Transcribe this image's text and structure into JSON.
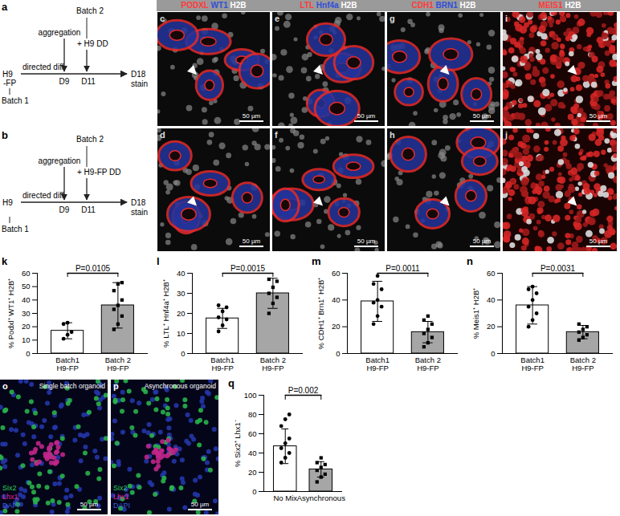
{
  "diagrams": [
    {
      "panel": "a",
      "cell_line": "H9",
      "cell_line_suffix": "-FP",
      "batch1": "Batch 1",
      "process": "directed diff",
      "aggregation": "aggregation",
      "aggregation_day": "D9",
      "batch2": "Batch 2",
      "batch2_addition": "+ H9 DD",
      "batch2_day": "D11",
      "end_day": "D18",
      "end_label": "stain"
    },
    {
      "panel": "b",
      "cell_line": "H9",
      "batch1": "Batch 1",
      "process": "directed diff",
      "aggregation": "aggregation",
      "aggregation_day": "D9",
      "batch2": "Batch 2",
      "batch2_addition": "+ H9-FP DD",
      "batch2_day": "D11",
      "end_day": "D18",
      "end_label": "stain"
    }
  ],
  "image_panels": {
    "headers": [
      [
        {
          "text": "PODXL",
          "color": "#ff3b3b"
        },
        {
          "text": "WT1",
          "color": "#2f4fd8"
        },
        {
          "text": "H2B",
          "color": "#ffffff"
        }
      ],
      [
        {
          "text": "LTL",
          "color": "#ff3b3b"
        },
        {
          "text": "Hnf4a",
          "color": "#2f4fd8"
        },
        {
          "text": "H2B",
          "color": "#ffffff"
        }
      ],
      [
        {
          "text": "CDH1",
          "color": "#ff3b3b"
        },
        {
          "text": "BRN1",
          "color": "#2f4fd8"
        },
        {
          "text": "H2B",
          "color": "#ffffff"
        }
      ],
      [
        {
          "text": "MEIS1",
          "color": "#ff3b3b"
        },
        {
          "text": "H2B",
          "color": "#ffffff"
        }
      ]
    ],
    "rows": [
      [
        {
          "label": "c",
          "scale_bar": "50 µm"
        },
        {
          "label": "e",
          "scale_bar": "50 µm"
        },
        {
          "label": "g",
          "scale_bar": "50 µm"
        },
        {
          "label": "i",
          "scale_bar": "50 µm"
        }
      ],
      [
        {
          "label": "d",
          "scale_bar": "50 µm"
        },
        {
          "label": "f",
          "scale_bar": "50 µm"
        },
        {
          "label": "h",
          "scale_bar": "50 µm"
        },
        {
          "label": "j",
          "scale_bar": "50 µm"
        }
      ]
    ]
  },
  "organoid_panels": [
    {
      "label": "o",
      "caption": "Single batch organoid",
      "legend": [
        {
          "text": "Six2",
          "color": "#2ecc55"
        },
        {
          "text": "Lhx1",
          "color": "#e0218a"
        },
        {
          "text": "DAPI",
          "color": "#3b5bdc"
        }
      ],
      "scale_bar": "50 µm"
    },
    {
      "label": "p",
      "caption": "Asynchronous organoid",
      "legend": [
        {
          "text": "Six2",
          "color": "#2ecc55"
        },
        {
          "text": "Lhx1",
          "color": "#e0218a"
        },
        {
          "text": "DAPI",
          "color": "#3b5bdc"
        }
      ],
      "scale_bar": "50 µm"
    }
  ],
  "chart_data": [
    {
      "type": "bar",
      "panel_label": "k",
      "ylabel": "% Podxl⁺ WT1⁺ H2B⁺",
      "categories": [
        "Batch1\nH9-FP",
        "Batch 2\nH9-FP"
      ],
      "values": [
        17,
        36
      ],
      "errors": [
        6,
        17
      ],
      "points": [
        [
          11,
          14,
          16,
          22,
          23
        ],
        [
          18,
          22,
          28,
          33,
          36,
          40,
          47,
          52,
          53
        ]
      ],
      "colors": [
        "#ffffff",
        "#a6a6a6"
      ],
      "ylim": [
        0,
        60
      ],
      "yticks": [
        0,
        10,
        20,
        30,
        40,
        50,
        60
      ],
      "annotation": "P=0.0105"
    },
    {
      "type": "bar",
      "panel_label": "l",
      "ylabel": "% LTL⁺ Hnf4a⁺ H2B⁺",
      "categories": [
        "Batch1\nH9-FP",
        "Batch 2\nH9-FP"
      ],
      "values": [
        17.5,
        30
      ],
      "errors": [
        5,
        7.5
      ],
      "points": [
        [
          11,
          14,
          17,
          18,
          21,
          23,
          24
        ],
        [
          20,
          25,
          28,
          30,
          33,
          36,
          37
        ]
      ],
      "colors": [
        "#ffffff",
        "#a6a6a6"
      ],
      "ylim": [
        0,
        40
      ],
      "yticks": [
        0,
        10,
        20,
        30,
        40
      ],
      "annotation": "P=0.0015"
    },
    {
      "type": "bar",
      "panel_label": "m",
      "ylabel": "% CDH1⁺ Brn1⁺ H2B⁺",
      "categories": [
        "Batch1\nH9-FP",
        "Batch 2\nH9-FP"
      ],
      "values": [
        39,
        16
      ],
      "errors": [
        15,
        8
      ],
      "points": [
        [
          22,
          28,
          35,
          38,
          40,
          48,
          52,
          58
        ],
        [
          5,
          8,
          12,
          15,
          18,
          22,
          25,
          28
        ]
      ],
      "colors": [
        "#ffffff",
        "#a6a6a6"
      ],
      "ylim": [
        0,
        60
      ],
      "yticks": [
        0,
        20,
        40,
        60
      ],
      "annotation": "P=0.0011"
    },
    {
      "type": "bar",
      "panel_label": "n",
      "ylabel": "% Meis1⁺ H2B⁺",
      "categories": [
        "Batch1\nH9-FP",
        "Batch 2\nH9-FP"
      ],
      "values": [
        36,
        16
      ],
      "errors": [
        14,
        5
      ],
      "points": [
        [
          20,
          25,
          30,
          35,
          40,
          45,
          48,
          50
        ],
        [
          10,
          12,
          14,
          16,
          18,
          20,
          22
        ]
      ],
      "colors": [
        "#ffffff",
        "#a6a6a6"
      ],
      "ylim": [
        0,
        60
      ],
      "yticks": [
        0,
        20,
        40,
        60
      ],
      "annotation": "P=0.0031"
    },
    {
      "type": "bar",
      "panel_label": "q",
      "ylabel": "% Six2⁺ Lhx1⁻",
      "categories": [
        "No Mix",
        "Asynchronous"
      ],
      "values": [
        47,
        23
      ],
      "errors": [
        18,
        8
      ],
      "points": [
        [
          30,
          35,
          40,
          45,
          50,
          55,
          68,
          75,
          80
        ],
        [
          10,
          15,
          18,
          22,
          25,
          28,
          30,
          35
        ]
      ],
      "colors": [
        "#ffffff",
        "#a6a6a6"
      ],
      "ylim": [
        0,
        100
      ],
      "yticks": [
        0,
        20,
        40,
        60,
        80,
        100
      ],
      "annotation": "P=0.002"
    }
  ]
}
